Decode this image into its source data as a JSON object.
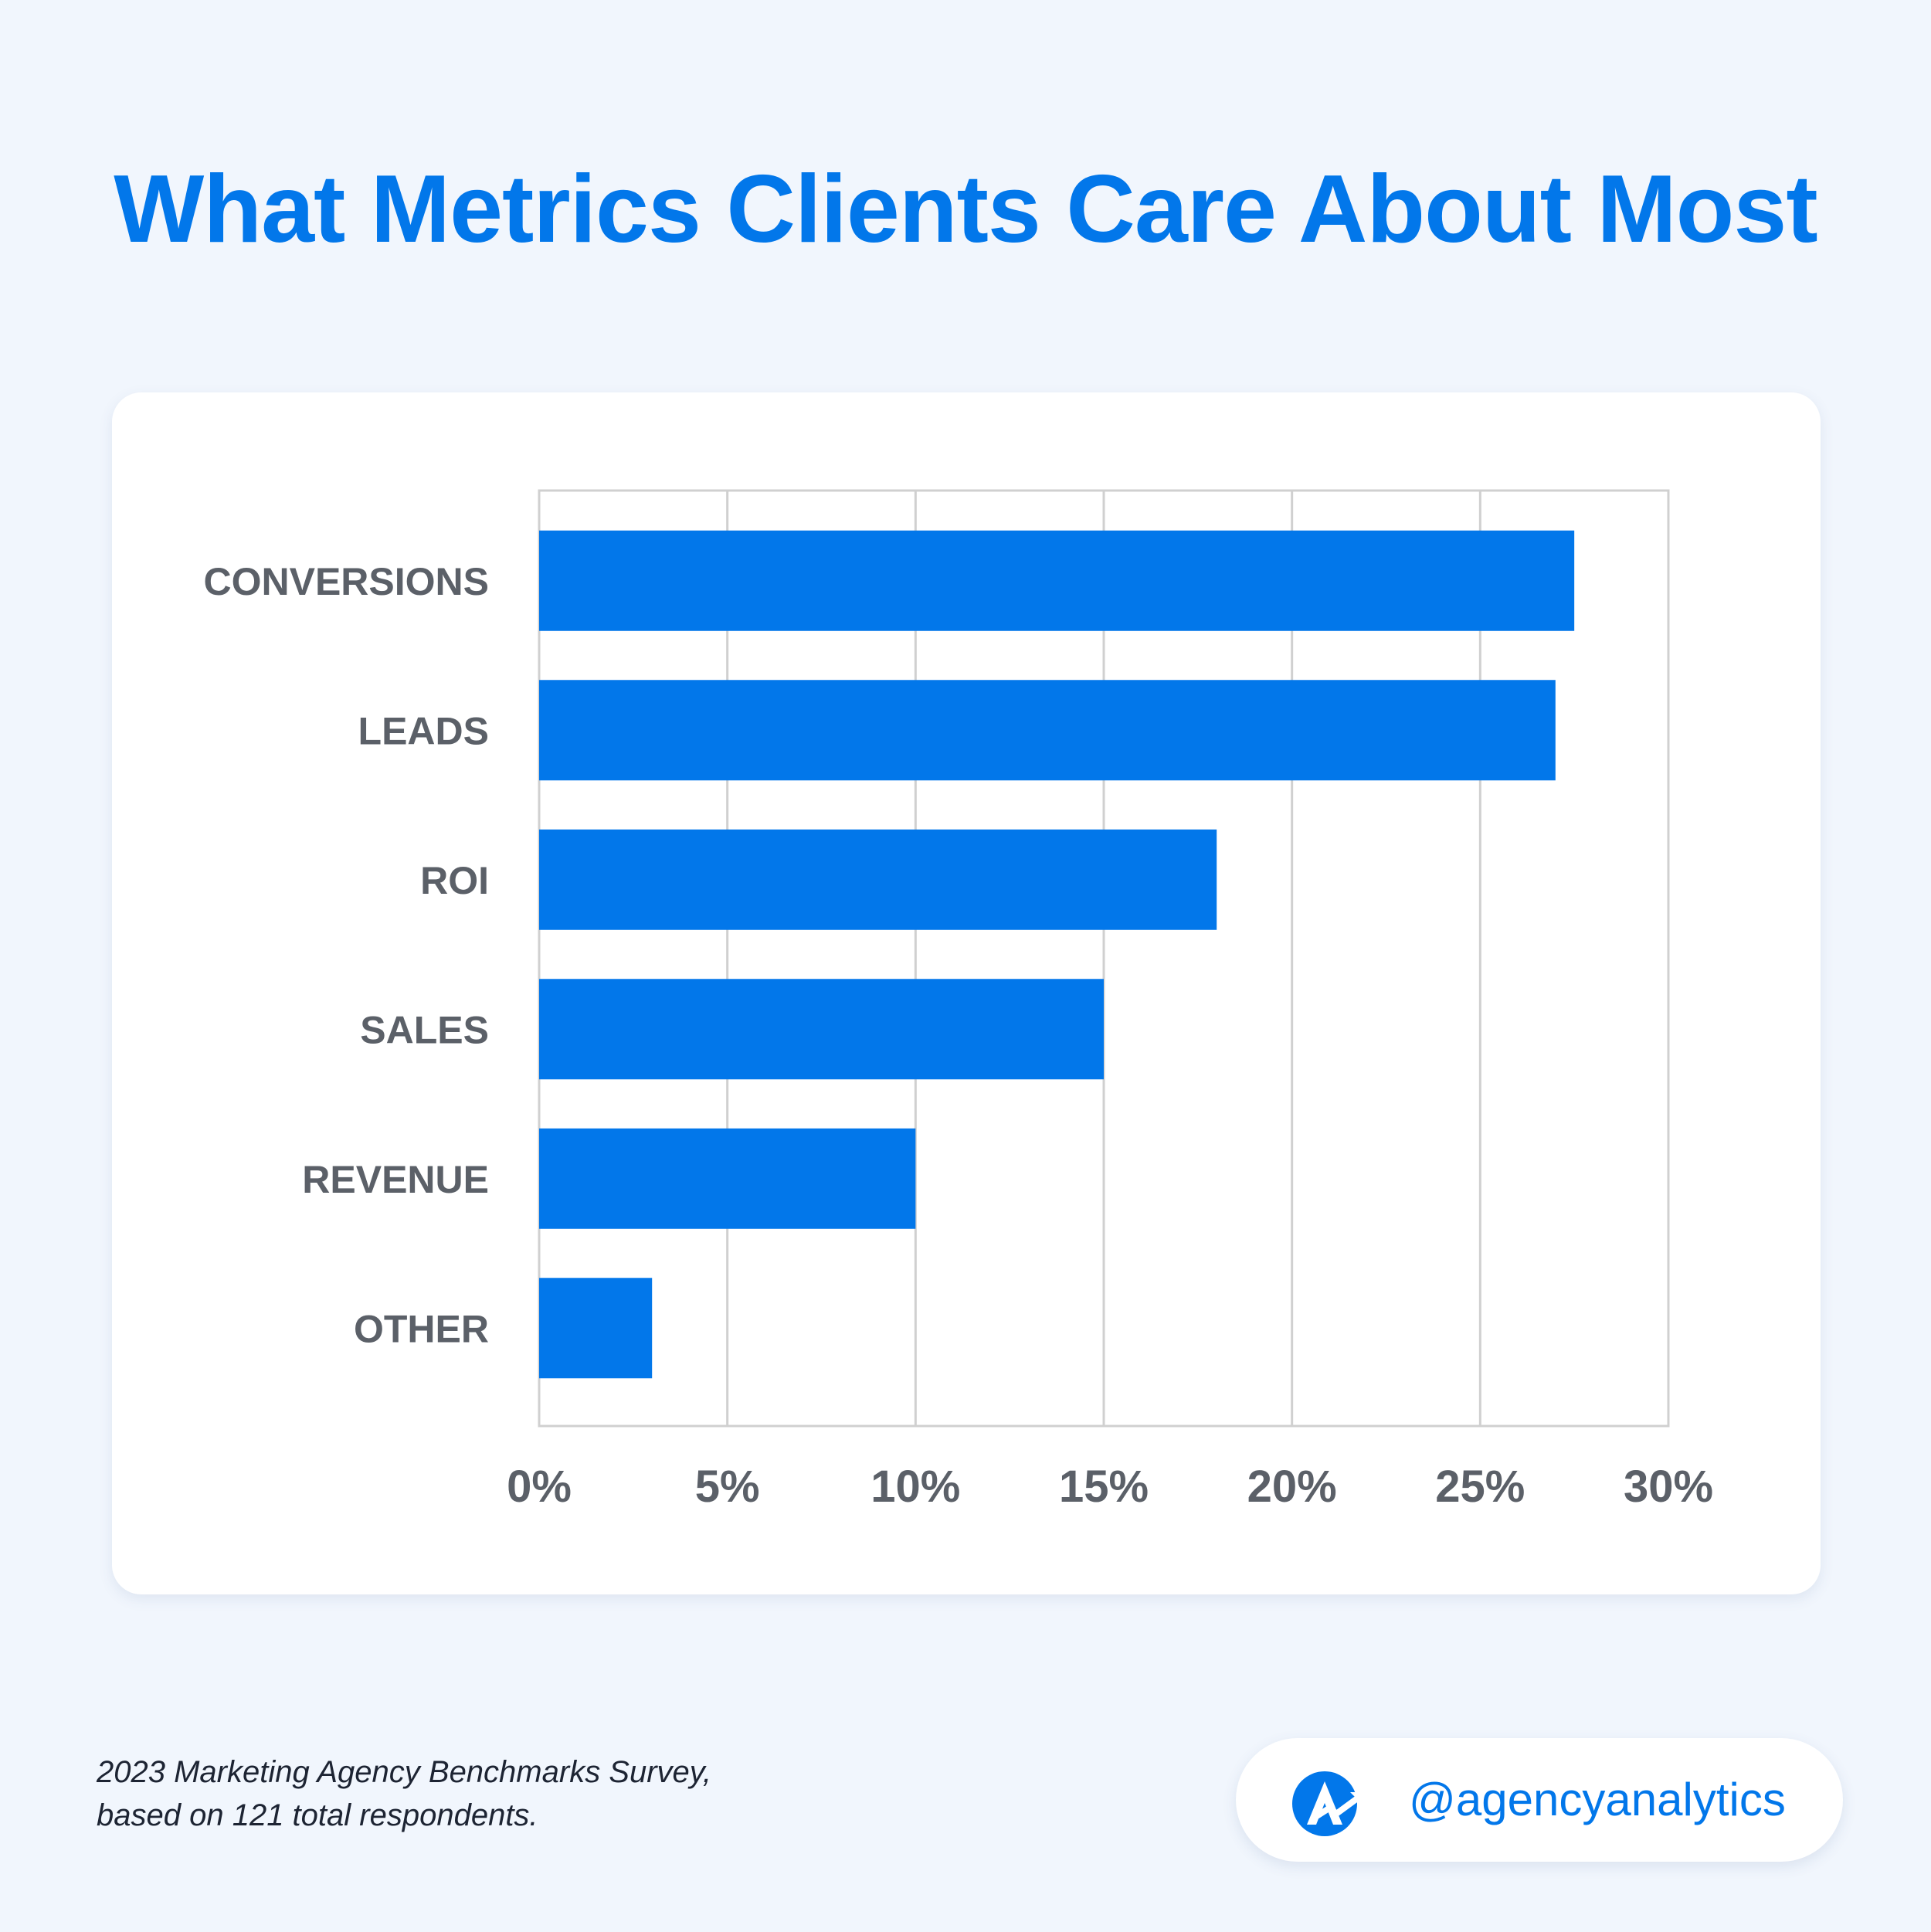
{
  "title": "What Metrics Clients Care About Most",
  "footnote": {
    "line1": "2023 Marketing Agency Benchmarks Survey,",
    "line2": "based on 121 total respondents."
  },
  "brand": {
    "handle": "@agencyanalytics",
    "logo_icon": "agencyanalytics-logo-icon"
  },
  "colors": {
    "accent": "#0277ea",
    "bar": "#0277ea",
    "background": "#f1f6fd",
    "label": "#5b6068",
    "grid": "#d0d0d0"
  },
  "chart_data": {
    "type": "bar",
    "orientation": "horizontal",
    "categories": [
      "CONVERSIONS",
      "LEADS",
      "ROI",
      "SALES",
      "REVENUE",
      "OTHER"
    ],
    "values": [
      27.5,
      27,
      18,
      15,
      10,
      3
    ],
    "unit": "%",
    "xlim": [
      0,
      30
    ],
    "xticks": [
      "0%",
      "5%",
      "10%",
      "15%",
      "20%",
      "25%",
      "30%"
    ],
    "title": "",
    "xlabel": "",
    "ylabel": "",
    "grid": true,
    "legend": "none"
  }
}
